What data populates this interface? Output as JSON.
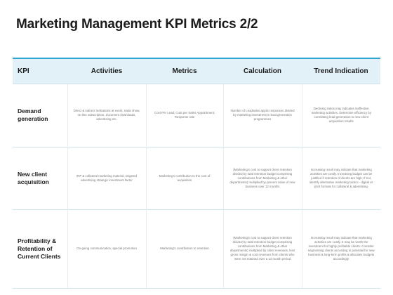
{
  "title": "Marketing Management KPI Metrics 2/2",
  "headers": [
    "KPI",
    "Activities",
    "Metrics",
    "Calculation",
    "Trend Indication"
  ],
  "rows": [
    {
      "kpi": "Demand generation",
      "activities": "Direct & indirect indications at event, trade show, on-line subscription, document downloads, advertising etc.",
      "metrics": "Cost Per Lead; Cost per Sales Appointment; Response rate",
      "calculation": "Number of Leadsales applic responses divided by marketing investment in lead generation programmes",
      "trend": "Declining ratios may indicates ineffective marketing activities. Determine efficiency by correlating lead generation to new client acquisition results"
    },
    {
      "kpi": "New client acquisition",
      "activities": "IRP & collateral marketing material, targeted advertising strategic investment factor",
      "metrics": "Marketing's contribution to the cost of acquisition",
      "calculation": "(Marketing's cost to support client retention divided by total retention budget comprising contributions from Marketing & other departments) multiplied by present value of new business over 12 months",
      "trend": "Increasing result may indicate that marketing activities are costly. Increasing budget can be justified if retention of clients are high. If not, identify alternative marketing tactics - digital vs print formats for collateral & advertising."
    },
    {
      "kpi": "Profitability & Retention of Current Clients",
      "activities": "On-going communication, special promotion",
      "metrics": "Marketing's contribution to retention",
      "calculation": "(Marketing's cost to support client retention divided by total retention budget comprising contributions from Marketing & other departments) multiplied by client revenues, less gross margin & cost revenues from clients who were not retained over a 12 month period",
      "trend": "Increasing result may indicate that marketing activities are costly. It may be worth the investment for highly profitable clients. Consider segmenting clients according to potential for new business & long-term profits & allocates budgets accordingly."
    }
  ],
  "colors": {
    "header_bg": "#e2f1f8",
    "header_accent": "#2da3d3",
    "row_divider": "#cfe1ea"
  }
}
